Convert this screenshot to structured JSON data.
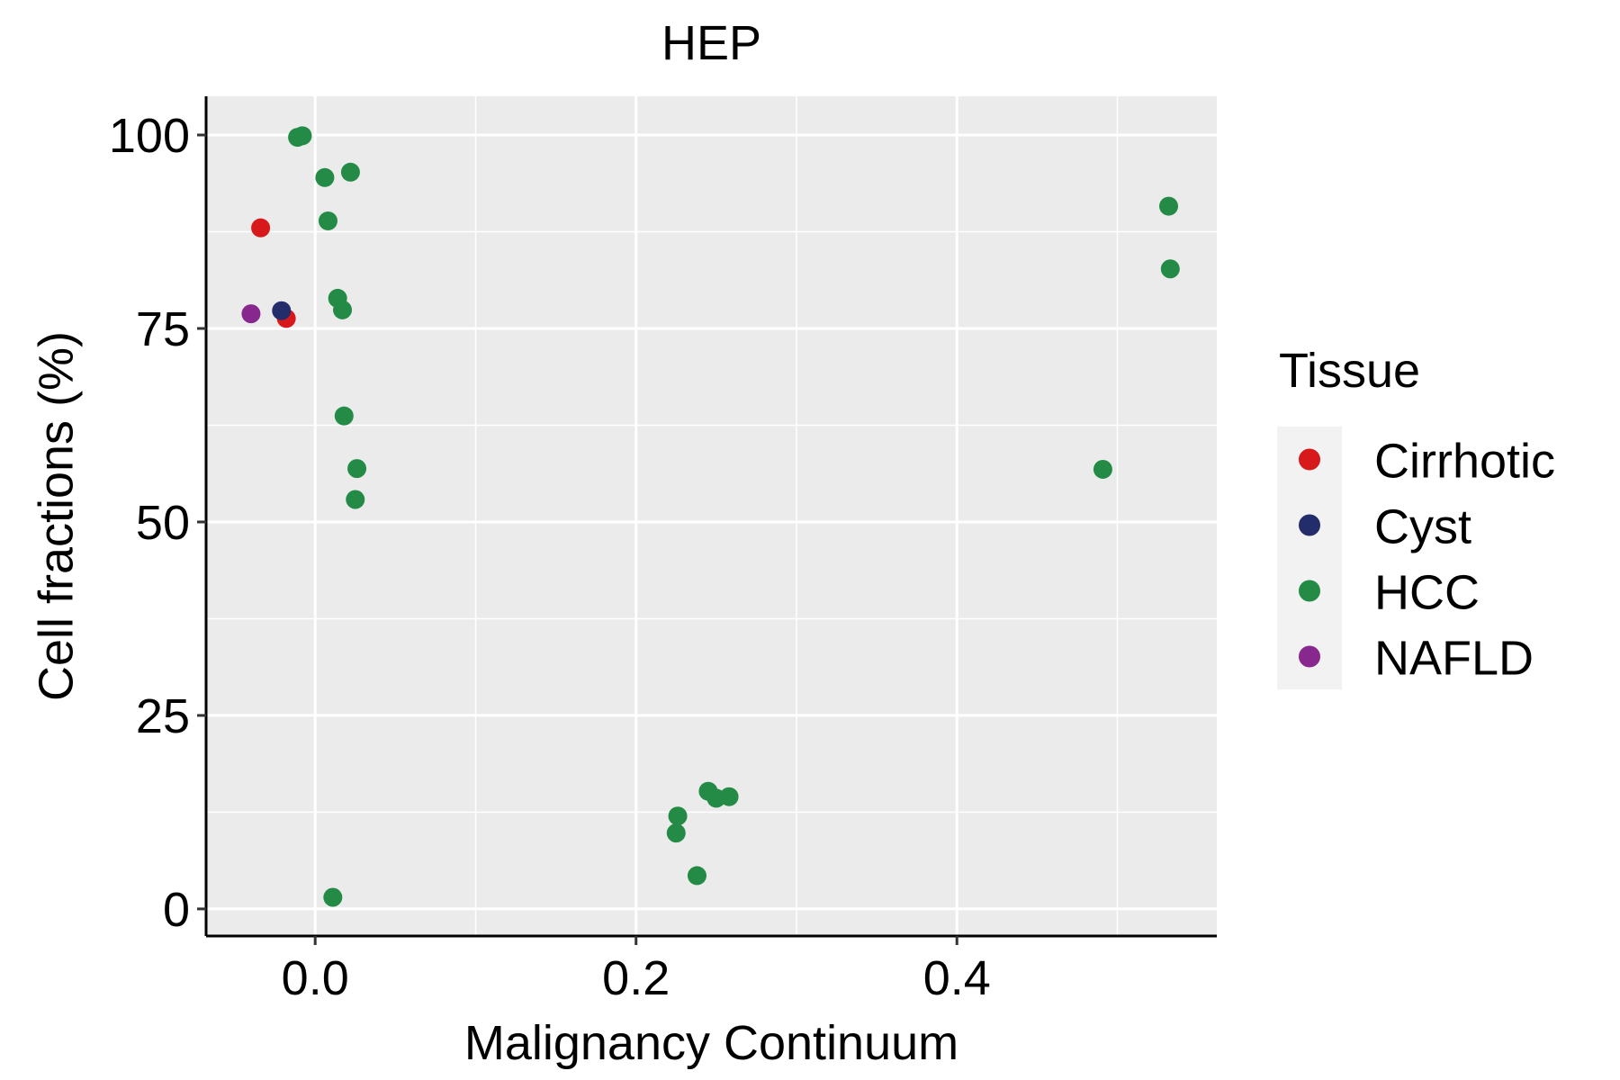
{
  "chart_data": {
    "type": "scatter",
    "title": "HEP",
    "xlabel": "Malignancy Continuum",
    "ylabel": "Cell fractions (%)",
    "xlim": [
      -0.068,
      0.562
    ],
    "ylim": [
      -3.5,
      105
    ],
    "x_ticks": [
      0.0,
      0.2,
      0.4
    ],
    "x_tick_labels": [
      "0.0",
      "0.2",
      "0.4"
    ],
    "x_minor_ticks": [
      0.1,
      0.3,
      0.5
    ],
    "y_ticks": [
      0,
      25,
      50,
      75,
      100
    ],
    "y_tick_labels": [
      "0",
      "25",
      "50",
      "75",
      "100"
    ],
    "y_minor_ticks": [
      12.5,
      37.5,
      62.5,
      87.5
    ],
    "grid": true,
    "panel_background": "#EBEBEB",
    "legend": {
      "title": "Tissue",
      "placement": "right",
      "entries": [
        "Cirrhotic",
        "Cyst",
        "HCC",
        "NAFLD"
      ]
    },
    "series": [
      {
        "name": "Cirrhotic",
        "color": "#D7191C",
        "points": [
          {
            "x": -0.034,
            "y": 88.0
          },
          {
            "x": -0.018,
            "y": 76.3
          }
        ]
      },
      {
        "name": "Cyst",
        "color": "#232D6B",
        "points": [
          {
            "x": -0.021,
            "y": 77.3
          }
        ]
      },
      {
        "name": "HCC",
        "color": "#238B45",
        "points": [
          {
            "x": -0.011,
            "y": 99.7
          },
          {
            "x": -0.008,
            "y": 99.9
          },
          {
            "x": 0.006,
            "y": 94.5
          },
          {
            "x": 0.022,
            "y": 95.2
          },
          {
            "x": 0.008,
            "y": 88.9
          },
          {
            "x": 0.014,
            "y": 78.9
          },
          {
            "x": 0.017,
            "y": 77.4
          },
          {
            "x": 0.018,
            "y": 63.7
          },
          {
            "x": 0.026,
            "y": 56.9
          },
          {
            "x": 0.025,
            "y": 52.9
          },
          {
            "x": 0.011,
            "y": 1.5
          },
          {
            "x": 0.226,
            "y": 12.0
          },
          {
            "x": 0.225,
            "y": 9.8
          },
          {
            "x": 0.245,
            "y": 15.2
          },
          {
            "x": 0.25,
            "y": 14.3
          },
          {
            "x": 0.258,
            "y": 14.5
          },
          {
            "x": 0.238,
            "y": 4.3
          },
          {
            "x": 0.491,
            "y": 56.8
          },
          {
            "x": 0.532,
            "y": 90.8
          },
          {
            "x": 0.533,
            "y": 82.7
          }
        ]
      },
      {
        "name": "NAFLD",
        "color": "#88288F",
        "points": [
          {
            "x": -0.04,
            "y": 76.9
          }
        ]
      }
    ]
  }
}
